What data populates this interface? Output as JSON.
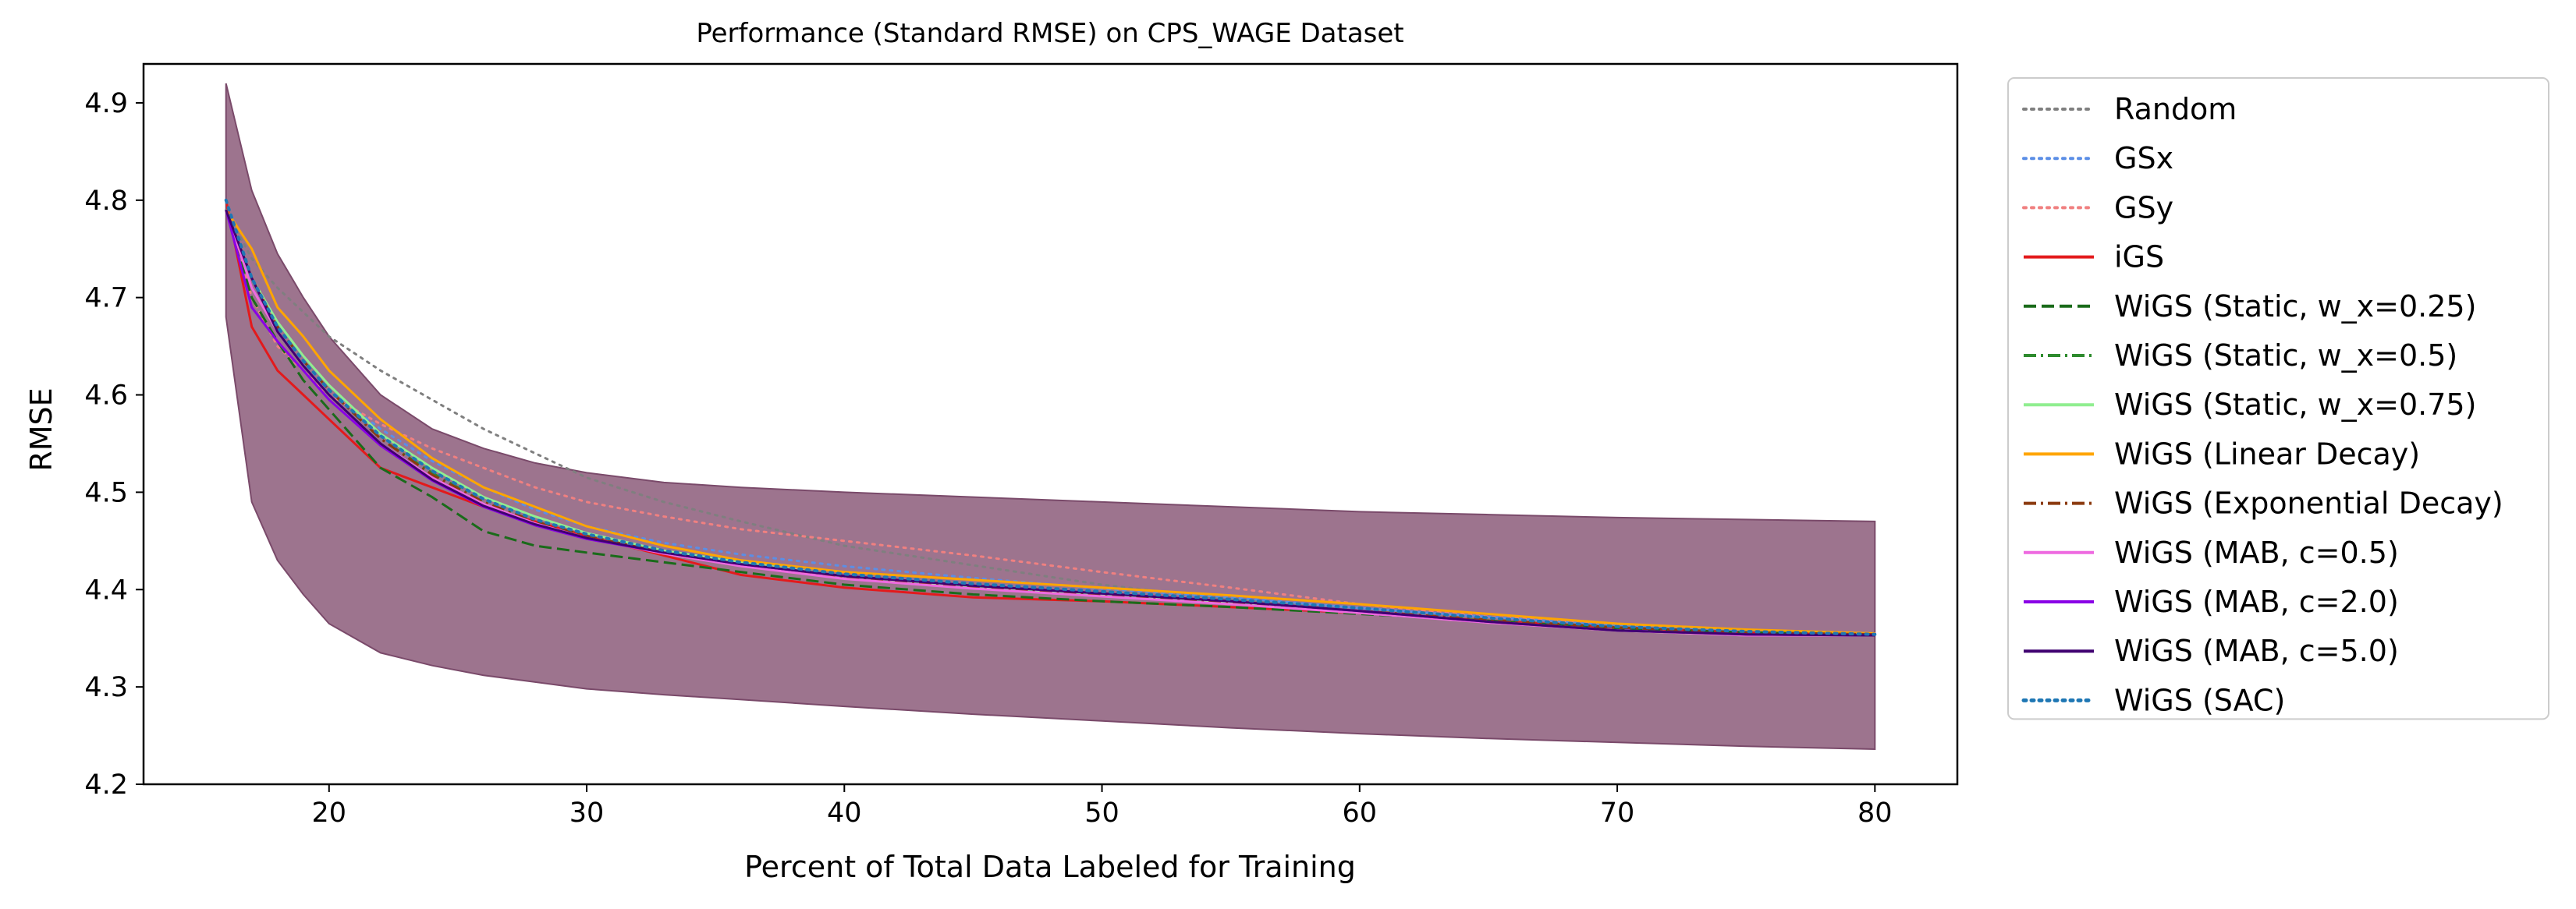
{
  "chart_data": {
    "type": "line",
    "title": "Performance (Standard RMSE) on CPS_WAGE Dataset",
    "xlabel": "Percent of Total Data Labeled for Training",
    "ylabel": "RMSE",
    "xlim": [
      12.8,
      83.2
    ],
    "ylim": [
      4.2,
      4.94
    ],
    "xticks": [
      20,
      30,
      40,
      50,
      60,
      70,
      80
    ],
    "yticks": [
      4.2,
      4.3,
      4.4,
      4.5,
      4.6,
      4.7,
      4.8,
      4.9
    ],
    "grid": false,
    "legend_position": "outside-right",
    "x": [
      16,
      17,
      18,
      19,
      20,
      22,
      24,
      26,
      28,
      30,
      33,
      36,
      40,
      45,
      50,
      55,
      60,
      65,
      70,
      75,
      80
    ],
    "shaded_band": {
      "color": "#8c5c7a",
      "lower": [
        4.68,
        4.49,
        4.43,
        4.395,
        4.365,
        4.335,
        4.322,
        4.312,
        4.305,
        4.298,
        4.292,
        4.287,
        4.28,
        4.272,
        4.265,
        4.258,
        4.252,
        4.247,
        4.243,
        4.239,
        4.236
      ],
      "upper": [
        4.92,
        4.81,
        4.745,
        4.7,
        4.66,
        4.6,
        4.565,
        4.545,
        4.53,
        4.52,
        4.51,
        4.505,
        4.5,
        4.495,
        4.49,
        4.485,
        4.48,
        4.477,
        4.474,
        4.472,
        4.47
      ]
    },
    "series": [
      {
        "name": "Random",
        "color": "#7f7f7f",
        "dash": "dot",
        "width": 3,
        "values": [
          4.79,
          4.74,
          4.71,
          4.685,
          4.66,
          4.625,
          4.595,
          4.565,
          4.54,
          4.515,
          4.49,
          4.47,
          4.445,
          4.425,
          4.405,
          4.39,
          4.378,
          4.368,
          4.362,
          4.357,
          4.354
        ]
      },
      {
        "name": "GSx",
        "color": "#5b8ee6",
        "dash": "dot",
        "width": 3,
        "values": [
          4.8,
          4.72,
          4.67,
          4.635,
          4.605,
          4.565,
          4.532,
          4.505,
          4.482,
          4.465,
          4.448,
          4.436,
          4.424,
          4.412,
          4.401,
          4.392,
          4.381,
          4.372,
          4.364,
          4.358,
          4.354
        ]
      },
      {
        "name": "GSy",
        "color": "#f08080",
        "dash": "dot",
        "width": 3,
        "values": [
          4.8,
          4.7,
          4.65,
          4.625,
          4.6,
          4.57,
          4.545,
          4.525,
          4.505,
          4.49,
          4.475,
          4.462,
          4.45,
          4.435,
          4.418,
          4.402,
          4.385,
          4.372,
          4.364,
          4.358,
          4.355
        ]
      },
      {
        "name": "iGS",
        "color": "#e31a1c",
        "dash": "solid",
        "width": 3,
        "values": [
          4.8,
          4.67,
          4.625,
          4.6,
          4.575,
          4.525,
          4.505,
          4.485,
          4.47,
          4.455,
          4.435,
          4.415,
          4.402,
          4.392,
          4.388,
          4.382,
          4.376,
          4.368,
          4.361,
          4.356,
          4.353
        ]
      },
      {
        "name": "WiGS (Static, w_x=0.25)",
        "color": "#1a6b1a",
        "dash": "dashed",
        "width": 3,
        "values": [
          4.79,
          4.7,
          4.655,
          4.615,
          4.585,
          4.525,
          4.495,
          4.46,
          4.445,
          4.438,
          4.428,
          4.418,
          4.405,
          4.395,
          4.388,
          4.382,
          4.375,
          4.368,
          4.36,
          4.356,
          4.354
        ]
      },
      {
        "name": "WiGS (Static, w_x=0.5)",
        "color": "#2e8b2e",
        "dash": "dashdot",
        "width": 3,
        "values": [
          4.79,
          4.72,
          4.67,
          4.635,
          4.605,
          4.555,
          4.52,
          4.49,
          4.47,
          4.455,
          4.438,
          4.425,
          4.412,
          4.402,
          4.394,
          4.386,
          4.378,
          4.369,
          4.361,
          4.356,
          4.354
        ]
      },
      {
        "name": "WiGS (Static, w_x=0.75)",
        "color": "#90ee90",
        "dash": "solid",
        "width": 3,
        "values": [
          4.79,
          4.72,
          4.675,
          4.64,
          4.61,
          4.56,
          4.525,
          4.495,
          4.475,
          4.458,
          4.44,
          4.428,
          4.414,
          4.403,
          4.395,
          4.386,
          4.377,
          4.367,
          4.358,
          4.353,
          4.353
        ]
      },
      {
        "name": "WiGS (Linear Decay)",
        "color": "#ffa500",
        "dash": "solid",
        "width": 3,
        "values": [
          4.79,
          4.75,
          4.69,
          4.66,
          4.625,
          4.575,
          4.535,
          4.505,
          4.485,
          4.465,
          4.445,
          4.43,
          4.418,
          4.41,
          4.402,
          4.394,
          4.385,
          4.375,
          4.365,
          4.359,
          4.355
        ]
      },
      {
        "name": "WiGS (Exponential Decay)",
        "color": "#8b3a0f",
        "dash": "dashdot",
        "width": 3,
        "values": [
          4.79,
          4.72,
          4.67,
          4.635,
          4.605,
          4.555,
          4.518,
          4.49,
          4.47,
          4.455,
          4.438,
          4.425,
          4.412,
          4.402,
          4.394,
          4.386,
          4.378,
          4.369,
          4.361,
          4.356,
          4.354
        ]
      },
      {
        "name": "WiGS (MAB, c=0.5)",
        "color": "#ee6ae0",
        "dash": "solid",
        "width": 3,
        "values": [
          4.79,
          4.71,
          4.665,
          4.63,
          4.6,
          4.55,
          4.515,
          4.488,
          4.468,
          4.453,
          4.437,
          4.424,
          4.411,
          4.401,
          4.393,
          4.385,
          4.376,
          4.366,
          4.358,
          4.353,
          4.353
        ]
      },
      {
        "name": "WiGS (MAB, c=2.0)",
        "color": "#8a00e6",
        "dash": "solid",
        "width": 3,
        "values": [
          4.79,
          4.69,
          4.655,
          4.625,
          4.595,
          4.548,
          4.512,
          4.485,
          4.466,
          4.452,
          4.438,
          4.426,
          4.414,
          4.404,
          4.396,
          4.388,
          4.378,
          4.367,
          4.358,
          4.354,
          4.353
        ]
      },
      {
        "name": "WiGS (MAB, c=5.0)",
        "color": "#3f0070",
        "dash": "solid",
        "width": 3,
        "values": [
          4.79,
          4.72,
          4.665,
          4.63,
          4.6,
          4.55,
          4.513,
          4.486,
          4.467,
          4.453,
          4.438,
          4.426,
          4.414,
          4.404,
          4.396,
          4.388,
          4.378,
          4.367,
          4.358,
          4.354,
          4.353
        ]
      },
      {
        "name": "WiGS (SAC)",
        "color": "#1f77b4",
        "dash": "dot",
        "width": 4,
        "values": [
          4.8,
          4.72,
          4.67,
          4.635,
          4.605,
          4.558,
          4.522,
          4.493,
          4.472,
          4.457,
          4.44,
          4.428,
          4.416,
          4.406,
          4.398,
          4.39,
          4.381,
          4.371,
          4.362,
          4.357,
          4.354
        ]
      }
    ]
  }
}
